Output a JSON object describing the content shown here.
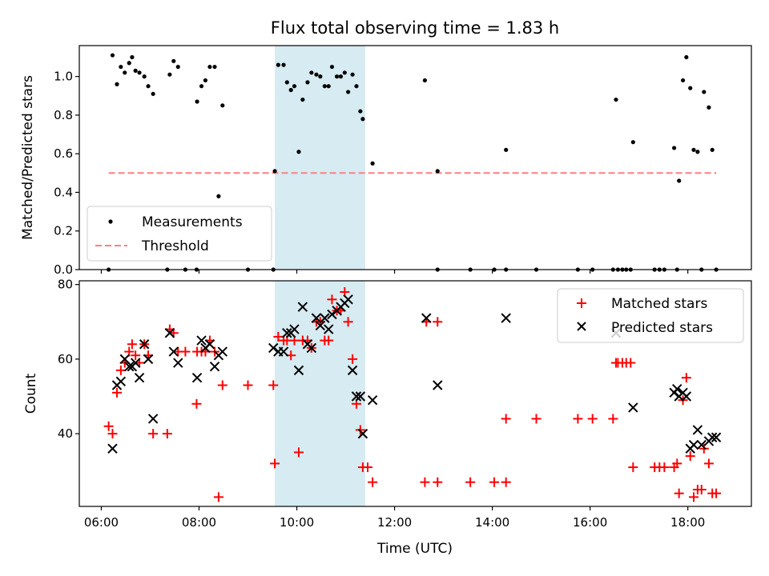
{
  "chart_data": {
    "type": "scatter",
    "title": "Flux total observing time = 1.83 h",
    "x_unit": "hours UTC",
    "shaded_span": {
      "x0": 9.55,
      "x1": 11.4,
      "color": "#add8e6"
    },
    "panels": [
      {
        "ylabel": "Matched/Predicted stars",
        "ylim": [
          0,
          1.16
        ],
        "yticks": [
          0.0,
          0.2,
          0.4,
          0.6,
          0.8,
          1.0
        ],
        "ytick_labels": [
          "0.0",
          "0.2",
          "0.4",
          "0.6",
          "0.8",
          "1.0"
        ],
        "legend": {
          "position": "lower left",
          "entries": [
            "Measurements",
            "Threshold"
          ]
        },
        "series": [
          {
            "name": "Measurements",
            "marker": "dot",
            "color": "#000000",
            "points": [
              [
                6.15,
                0.0
              ],
              [
                6.23,
                1.11
              ],
              [
                6.32,
                0.96
              ],
              [
                6.4,
                1.05
              ],
              [
                6.48,
                1.02
              ],
              [
                6.57,
                1.07
              ],
              [
                6.63,
                1.1
              ],
              [
                6.7,
                1.03
              ],
              [
                6.78,
                1.02
              ],
              [
                6.88,
                1.0
              ],
              [
                6.96,
                0.95
              ],
              [
                7.06,
                0.91
              ],
              [
                7.35,
                0.0
              ],
              [
                7.4,
                1.01
              ],
              [
                7.48,
                1.08
              ],
              [
                7.57,
                1.05
              ],
              [
                7.72,
                0.0
              ],
              [
                7.95,
                0.0
              ],
              [
                7.96,
                0.87
              ],
              [
                8.05,
                0.95
              ],
              [
                8.13,
                0.98
              ],
              [
                8.22,
                1.05
              ],
              [
                8.32,
                1.05
              ],
              [
                8.4,
                0.38
              ],
              [
                8.48,
                0.85
              ],
              [
                9.0,
                0.0
              ],
              [
                9.52,
                0.0
              ],
              [
                9.55,
                0.51
              ],
              [
                9.62,
                1.06
              ],
              [
                9.73,
                1.06
              ],
              [
                9.8,
                0.97
              ],
              [
                9.88,
                0.93
              ],
              [
                9.95,
                0.95
              ],
              [
                10.04,
                0.61
              ],
              [
                10.12,
                0.88
              ],
              [
                10.22,
                0.97
              ],
              [
                10.3,
                1.02
              ],
              [
                10.4,
                1.01
              ],
              [
                10.48,
                1.0
              ],
              [
                10.57,
                0.95
              ],
              [
                10.65,
                0.95
              ],
              [
                10.72,
                1.05
              ],
              [
                10.82,
                1.0
              ],
              [
                10.9,
                1.0
              ],
              [
                10.98,
                1.02
              ],
              [
                11.05,
                0.92
              ],
              [
                11.14,
                1.01
              ],
              [
                11.22,
                0.95
              ],
              [
                11.3,
                0.82
              ],
              [
                11.35,
                0.78
              ],
              [
                11.55,
                0.55
              ],
              [
                12.62,
                0.98
              ],
              [
                12.88,
                0.51
              ],
              [
                12.88,
                0.0
              ],
              [
                13.55,
                0.0
              ],
              [
                14.04,
                0.0
              ],
              [
                14.28,
                0.62
              ],
              [
                14.28,
                0.0
              ],
              [
                14.9,
                0.0
              ],
              [
                15.75,
                0.0
              ],
              [
                16.05,
                0.0
              ],
              [
                16.47,
                0.0
              ],
              [
                16.53,
                0.88
              ],
              [
                16.57,
                0.0
              ],
              [
                16.66,
                0.0
              ],
              [
                16.74,
                0.0
              ],
              [
                16.83,
                0.0
              ],
              [
                16.88,
                0.66
              ],
              [
                17.32,
                0.0
              ],
              [
                17.42,
                0.0
              ],
              [
                17.52,
                0.0
              ],
              [
                17.72,
                0.63
              ],
              [
                17.78,
                0.0
              ],
              [
                17.82,
                0.46
              ],
              [
                17.9,
                0.98
              ],
              [
                17.97,
                1.1
              ],
              [
                18.05,
                0.94
              ],
              [
                18.12,
                0.62
              ],
              [
                18.2,
                0.61
              ],
              [
                18.28,
                0.0
              ],
              [
                18.33,
                0.92
              ],
              [
                18.43,
                0.84
              ],
              [
                18.5,
                0.62
              ],
              [
                18.58,
                0.0
              ]
            ]
          },
          {
            "name": "Threshold",
            "marker": "dashed-line",
            "color": "#ff7f7f",
            "x_range": [
              6.15,
              18.58
            ],
            "y": 0.5
          }
        ]
      },
      {
        "ylabel": "Count",
        "ylim": [
          20.5,
          81
        ],
        "yticks": [
          40,
          60,
          80
        ],
        "ytick_labels": [
          "40",
          "60",
          "80"
        ],
        "xlabel": "Time (UTC)",
        "xticks": [
          6,
          8,
          10,
          12,
          14,
          16,
          18
        ],
        "xtick_labels": [
          "06:00",
          "08:00",
          "10:00",
          "12:00",
          "14:00",
          "16:00",
          "18:00"
        ],
        "xlim": [
          5.55,
          19.3
        ],
        "legend": {
          "position": "upper right",
          "entries": [
            "Matched stars",
            "Predicted stars"
          ]
        },
        "series": [
          {
            "name": "Matched stars",
            "marker": "plus",
            "color": "#ff0000",
            "points": [
              [
                6.15,
                42
              ],
              [
                6.23,
                40
              ],
              [
                6.32,
                51
              ],
              [
                6.4,
                57
              ],
              [
                6.48,
                59
              ],
              [
                6.57,
                62
              ],
              [
                6.63,
                64
              ],
              [
                6.7,
                61
              ],
              [
                6.78,
                59
              ],
              [
                6.88,
                64
              ],
              [
                6.96,
                61
              ],
              [
                7.06,
                40
              ],
              [
                7.35,
                40
              ],
              [
                7.4,
                68
              ],
              [
                7.48,
                67
              ],
              [
                7.57,
                62
              ],
              [
                7.72,
                62
              ],
              [
                7.95,
                48
              ],
              [
                7.96,
                62
              ],
              [
                8.05,
                62
              ],
              [
                8.13,
                62
              ],
              [
                8.22,
                65
              ],
              [
                8.32,
                62
              ],
              [
                8.4,
                23
              ],
              [
                8.48,
                53
              ],
              [
                9.0,
                53
              ],
              [
                9.52,
                53
              ],
              [
                9.55,
                32
              ],
              [
                9.62,
                66
              ],
              [
                9.73,
                65
              ],
              [
                9.8,
                65
              ],
              [
                9.88,
                61
              ],
              [
                9.95,
                65
              ],
              [
                10.04,
                35
              ],
              [
                10.12,
                65
              ],
              [
                10.22,
                65
              ],
              [
                10.3,
                63
              ],
              [
                10.4,
                70
              ],
              [
                10.48,
                70
              ],
              [
                10.57,
                65
              ],
              [
                10.65,
                65
              ],
              [
                10.72,
                76
              ],
              [
                10.82,
                73
              ],
              [
                10.9,
                73
              ],
              [
                10.98,
                78
              ],
              [
                11.05,
                70
              ],
              [
                11.14,
                60
              ],
              [
                11.22,
                48
              ],
              [
                11.3,
                41
              ],
              [
                11.35,
                31
              ],
              [
                11.45,
                31
              ],
              [
                11.55,
                27
              ],
              [
                12.62,
                27
              ],
              [
                12.65,
                70
              ],
              [
                12.88,
                27
              ],
              [
                12.88,
                70
              ],
              [
                13.55,
                27
              ],
              [
                14.04,
                27
              ],
              [
                14.28,
                27
              ],
              [
                14.28,
                44
              ],
              [
                14.9,
                44
              ],
              [
                15.75,
                44
              ],
              [
                16.05,
                44
              ],
              [
                16.47,
                44
              ],
              [
                16.53,
                59
              ],
              [
                16.57,
                59
              ],
              [
                16.66,
                59
              ],
              [
                16.74,
                59
              ],
              [
                16.83,
                59
              ],
              [
                16.88,
                31
              ],
              [
                17.32,
                31
              ],
              [
                17.42,
                31
              ],
              [
                17.52,
                31
              ],
              [
                17.72,
                31
              ],
              [
                17.78,
                32
              ],
              [
                17.82,
                24
              ],
              [
                17.9,
                49
              ],
              [
                17.97,
                55
              ],
              [
                18.05,
                34
              ],
              [
                18.12,
                23
              ],
              [
                18.2,
                25
              ],
              [
                18.28,
                25
              ],
              [
                18.33,
                36
              ],
              [
                18.43,
                32
              ],
              [
                18.5,
                24
              ],
              [
                18.58,
                24
              ]
            ]
          },
          {
            "name": "Predicted stars",
            "marker": "x",
            "color": "#000000",
            "points": [
              [
                6.23,
                36
              ],
              [
                6.32,
                53
              ],
              [
                6.4,
                54
              ],
              [
                6.48,
                60
              ],
              [
                6.57,
                58
              ],
              [
                6.63,
                58
              ],
              [
                6.7,
                59
              ],
              [
                6.78,
                55
              ],
              [
                6.88,
                64
              ],
              [
                6.96,
                60
              ],
              [
                7.06,
                44
              ],
              [
                7.4,
                67
              ],
              [
                7.48,
                62
              ],
              [
                7.57,
                59
              ],
              [
                7.96,
                55
              ],
              [
                8.05,
                65
              ],
              [
                8.13,
                63
              ],
              [
                8.22,
                64
              ],
              [
                8.32,
                58
              ],
              [
                8.4,
                61
              ],
              [
                8.48,
                62
              ],
              [
                9.52,
                63
              ],
              [
                9.62,
                62
              ],
              [
                9.73,
                62
              ],
              [
                9.8,
                67
              ],
              [
                9.88,
                67
              ],
              [
                9.95,
                68
              ],
              [
                10.04,
                57
              ],
              [
                10.12,
                74
              ],
              [
                10.22,
                64
              ],
              [
                10.3,
                63
              ],
              [
                10.4,
                71
              ],
              [
                10.48,
                69
              ],
              [
                10.57,
                71
              ],
              [
                10.65,
                68
              ],
              [
                10.72,
                72
              ],
              [
                10.82,
                73
              ],
              [
                10.9,
                74
              ],
              [
                10.98,
                75
              ],
              [
                11.05,
                76
              ],
              [
                11.14,
                57
              ],
              [
                11.22,
                50
              ],
              [
                11.3,
                50
              ],
              [
                11.35,
                40
              ],
              [
                11.55,
                49
              ],
              [
                12.65,
                71
              ],
              [
                12.88,
                53
              ],
              [
                14.28,
                71
              ],
              [
                16.53,
                67
              ],
              [
                16.88,
                47
              ],
              [
                17.72,
                51
              ],
              [
                17.78,
                52
              ],
              [
                17.82,
                50
              ],
              [
                17.9,
                51
              ],
              [
                17.97,
                50
              ],
              [
                18.05,
                36
              ],
              [
                18.12,
                37
              ],
              [
                18.2,
                41
              ],
              [
                18.28,
                37
              ],
              [
                18.43,
                38
              ],
              [
                18.5,
                39
              ],
              [
                18.58,
                39
              ]
            ]
          }
        ]
      }
    ]
  }
}
